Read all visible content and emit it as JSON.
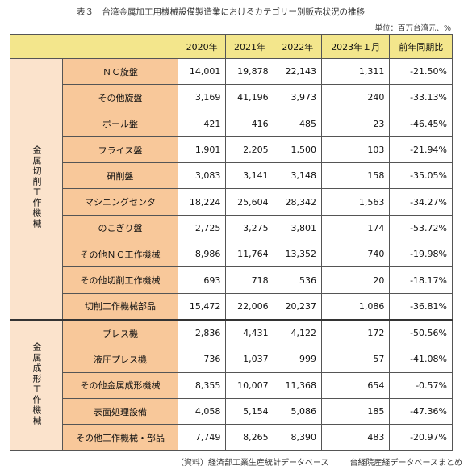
{
  "title": "表３　台湾金属加工用機械設備製造業におけるカテゴリー別販売状況の推移",
  "unit": "単位：百万台湾元、%",
  "columns": [
    "2020年",
    "2021年",
    "2022年",
    "2023年１月",
    "前年同期比"
  ],
  "groups": [
    {
      "label": "金属切削工作機械",
      "rows": [
        {
          "name": "ＮＣ旋盤",
          "values": [
            "14,001",
            "19,878",
            "22,143",
            "1,311",
            "-21.50%"
          ]
        },
        {
          "name": "その他旋盤",
          "values": [
            "3,169",
            "41,196",
            "3,973",
            "240",
            "-33.13%"
          ]
        },
        {
          "name": "ボール盤",
          "values": [
            "421",
            "416",
            "485",
            "23",
            "-46.45%"
          ]
        },
        {
          "name": "フライス盤",
          "values": [
            "1,901",
            "2,205",
            "1,500",
            "103",
            "-21.94%"
          ]
        },
        {
          "name": "研削盤",
          "values": [
            "3,083",
            "3,141",
            "3,148",
            "158",
            "-35.05%"
          ]
        },
        {
          "name": "マシニングセンタ",
          "values": [
            "18,224",
            "25,604",
            "28,342",
            "1,563",
            "-34.27%"
          ]
        },
        {
          "name": "のこぎり盤",
          "values": [
            "2,725",
            "3,275",
            "3,801",
            "174",
            "-53.72%"
          ]
        },
        {
          "name": "その他ＮＣ工作機械",
          "values": [
            "8,986",
            "11,764",
            "13,352",
            "740",
            "-19.98%"
          ]
        },
        {
          "name": "その他切削工作機械",
          "values": [
            "693",
            "718",
            "536",
            "20",
            "-18.17%"
          ]
        },
        {
          "name": "切削工作機械部品",
          "values": [
            "15,472",
            "22,006",
            "20,237",
            "1,086",
            "-36.81%"
          ]
        }
      ]
    },
    {
      "label": "金属成形工作機械",
      "rows": [
        {
          "name": "プレス機",
          "values": [
            "2,836",
            "4,431",
            "4,122",
            "172",
            "-50.56%"
          ]
        },
        {
          "name": "液圧プレス機",
          "values": [
            "736",
            "1,037",
            "999",
            "57",
            "-41.08%"
          ]
        },
        {
          "name": "その他金属成形機械",
          "values": [
            "8,355",
            "10,007",
            "11,368",
            "654",
            "-0.57%"
          ]
        },
        {
          "name": "表面処理設備",
          "values": [
            "4,058",
            "5,154",
            "5,086",
            "185",
            "-47.36%"
          ]
        },
        {
          "name": "その他工作機械・部品",
          "values": [
            "7,749",
            "8,265",
            "8,390",
            "483",
            "-20.97%"
          ]
        }
      ]
    }
  ],
  "footer": {
    "source": "（資料）経済部工業生産統計データベース",
    "compiled": "台経院産経データベースまとめ"
  }
}
